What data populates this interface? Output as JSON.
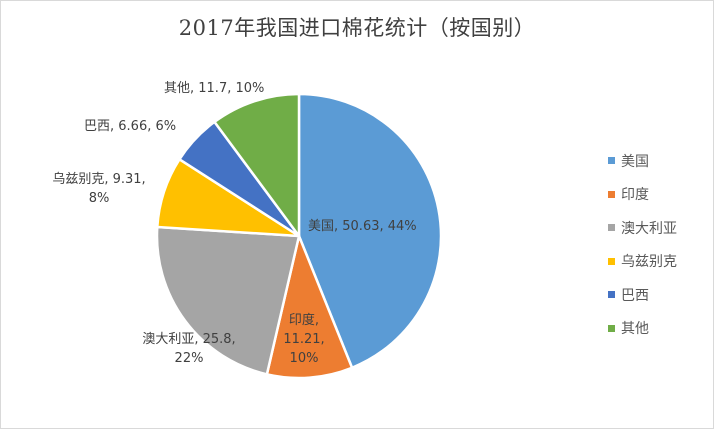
{
  "chart_data": {
    "type": "pie",
    "title": "2017年我国进口棉花统计（按国别）",
    "categories": [
      "美国",
      "印度",
      "澳大利亚",
      "乌兹别克",
      "巴西",
      "其他"
    ],
    "values": [
      50.63,
      11.21,
      25.8,
      9.31,
      6.66,
      11.7
    ],
    "percentages": [
      "44%",
      "10%",
      "22%",
      "8%",
      "6%",
      "10%"
    ],
    "colors": [
      "#5b9bd5",
      "#ed7d31",
      "#a5a5a5",
      "#ffc000",
      "#4472c4",
      "#70ad47"
    ],
    "legend_position": "right",
    "data_labels": [
      {
        "lines": [
          "美国, 50.63, 44%"
        ]
      },
      {
        "lines": [
          "印度,",
          "11.21,",
          "10%"
        ]
      },
      {
        "lines": [
          "澳大利亚, 25.8,",
          "22%"
        ]
      },
      {
        "lines": [
          "乌兹别克, 9.31,",
          "8%"
        ]
      },
      {
        "lines": [
          "巴西, 6.66, 6%"
        ]
      },
      {
        "lines": [
          "其他, 11.7, 10%"
        ]
      }
    ]
  },
  "legend": {
    "items": [
      {
        "label": "美国",
        "color": "#5b9bd5"
      },
      {
        "label": "印度",
        "color": "#ed7d31"
      },
      {
        "label": "澳大利亚",
        "color": "#a5a5a5"
      },
      {
        "label": "乌兹别克",
        "color": "#ffc000"
      },
      {
        "label": "巴西",
        "color": "#4472c4"
      },
      {
        "label": "其他",
        "color": "#70ad47"
      }
    ]
  }
}
